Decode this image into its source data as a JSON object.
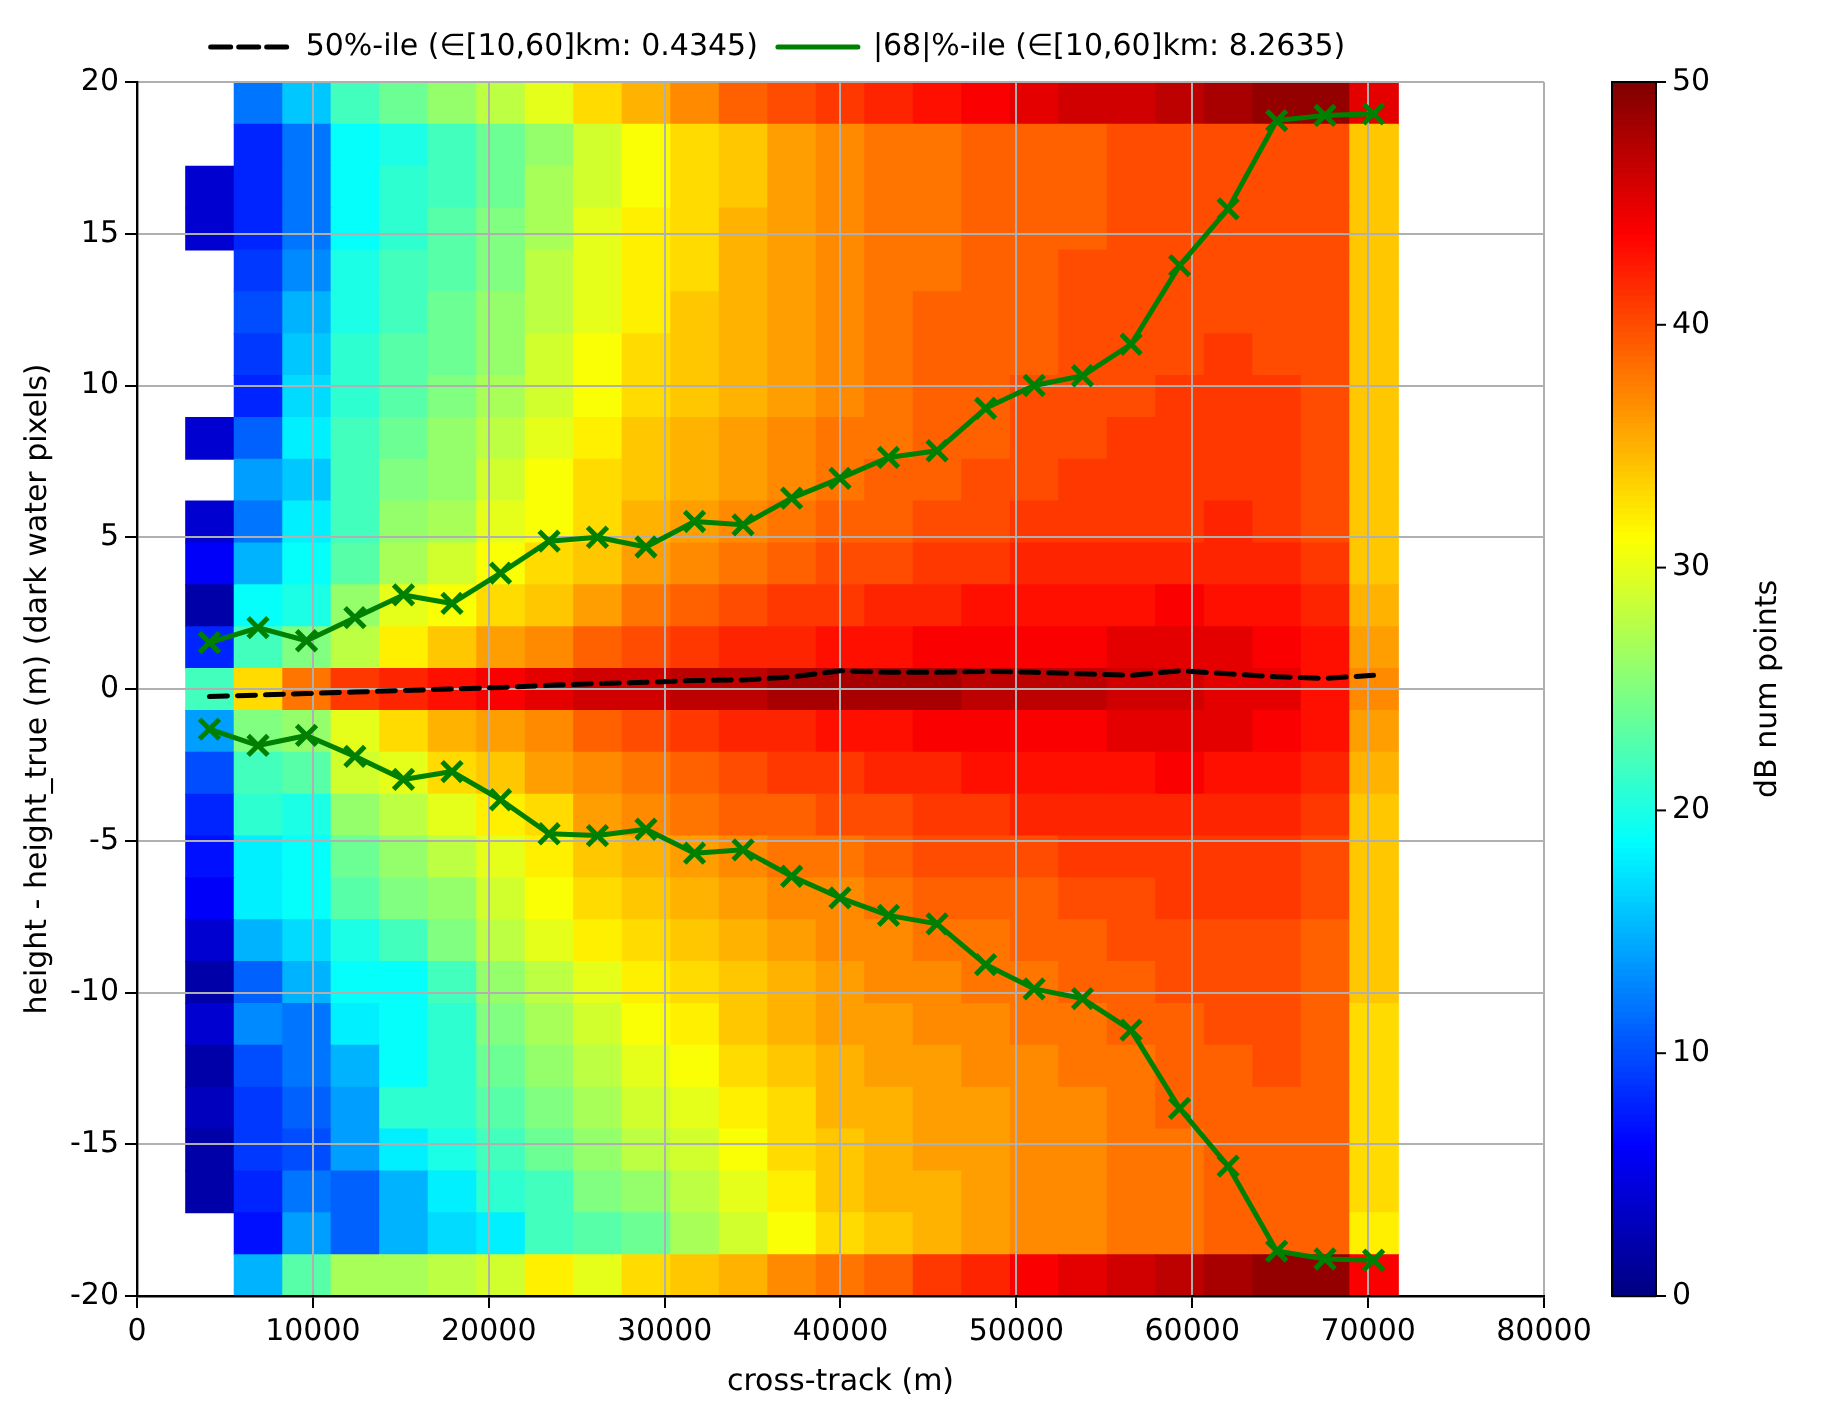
{
  "chart_data": {
    "type": "heatmap",
    "xlabel": "cross-track (m)",
    "ylabel": "height - height_true (m) (dark water pixels)",
    "clabel": "dB num points",
    "x": [
      4120,
      6880,
      9640,
      12390,
      15150,
      17910,
      20670,
      23430,
      26180,
      28940,
      31700,
      34460,
      37220,
      39970,
      42730,
      45490,
      48250,
      51010,
      53760,
      56520,
      59280,
      62040,
      64800,
      67550,
      70310
    ],
    "cells": [
      [
        null,
        12,
        16,
        22,
        24,
        26,
        28,
        30,
        33,
        35,
        37,
        39,
        40,
        41,
        42,
        43,
        44,
        45,
        46,
        46,
        47,
        48,
        49,
        49,
        45
      ],
      [
        null,
        8,
        12,
        19,
        20,
        22,
        24,
        26,
        29,
        31,
        33,
        34,
        36,
        37,
        38,
        38,
        39,
        39,
        39,
        40,
        40,
        40,
        40,
        40,
        34
      ],
      [
        4,
        8,
        12,
        19,
        21,
        22,
        24,
        27,
        29,
        31,
        33,
        34,
        36,
        37,
        38,
        38,
        39,
        39,
        39,
        40,
        40,
        40,
        40,
        40,
        34
      ],
      [
        4,
        8,
        12,
        19,
        21,
        23,
        25,
        27,
        30,
        32,
        33,
        35,
        36,
        37,
        38,
        38,
        39,
        39,
        39,
        40,
        40,
        40,
        40,
        40,
        34
      ],
      [
        null,
        9,
        13,
        20,
        22,
        23,
        25,
        28,
        30,
        32,
        33,
        35,
        36,
        37,
        38,
        38,
        39,
        39,
        40,
        40,
        40,
        40,
        40,
        40,
        34
      ],
      [
        null,
        10,
        15,
        20,
        22,
        24,
        26,
        28,
        30,
        32,
        34,
        35,
        36,
        37,
        38,
        39,
        39,
        39,
        40,
        40,
        40,
        40,
        40,
        40,
        34
      ],
      [
        null,
        9,
        16,
        21,
        23,
        24,
        26,
        29,
        31,
        33,
        34,
        35,
        36,
        37,
        38,
        39,
        39,
        39,
        40,
        40,
        40,
        41,
        40,
        40,
        34
      ],
      [
        null,
        8,
        17,
        21,
        23,
        25,
        27,
        29,
        31,
        33,
        34,
        35,
        36,
        37,
        38,
        39,
        39,
        40,
        40,
        40,
        41,
        41,
        41,
        40,
        34
      ],
      [
        4,
        11,
        18,
        22,
        24,
        26,
        28,
        30,
        32,
        34,
        35,
        36,
        37,
        38,
        38,
        39,
        39,
        40,
        40,
        41,
        41,
        41,
        41,
        40,
        34
      ],
      [
        null,
        14,
        16,
        22,
        25,
        26,
        29,
        31,
        33,
        34,
        35,
        36,
        37,
        38,
        39,
        39,
        40,
        40,
        41,
        41,
        41,
        41,
        41,
        40,
        34
      ],
      [
        4,
        12,
        18,
        22,
        26,
        27,
        30,
        31,
        33,
        35,
        36,
        37,
        38,
        39,
        39,
        40,
        40,
        41,
        41,
        41,
        41,
        42,
        41,
        40,
        34
      ],
      [
        6,
        15,
        19,
        23,
        27,
        29,
        31,
        33,
        34,
        36,
        37,
        38,
        39,
        40,
        40,
        41,
        41,
        42,
        42,
        42,
        42,
        42,
        42,
        41,
        34
      ],
      [
        2,
        19,
        20,
        26,
        30,
        31,
        33,
        34,
        36,
        38,
        39,
        40,
        41,
        41,
        42,
        42,
        43,
        43,
        43,
        43,
        44,
        43,
        43,
        42,
        35
      ],
      [
        8,
        22,
        25,
        28,
        32,
        34,
        36,
        37,
        39,
        40,
        41,
        42,
        42,
        43,
        43,
        44,
        44,
        44,
        44,
        45,
        45,
        45,
        44,
        43,
        36
      ],
      [
        22,
        33,
        38,
        41,
        42,
        43,
        44,
        45,
        46,
        46,
        47,
        47,
        48,
        48,
        48,
        48,
        47,
        47,
        47,
        46,
        46,
        45,
        45,
        43,
        37
      ],
      [
        14,
        25,
        26,
        30,
        33,
        35,
        36,
        37,
        39,
        40,
        41,
        42,
        42,
        43,
        43,
        44,
        44,
        44,
        44,
        45,
        45,
        45,
        44,
        43,
        36
      ],
      [
        10,
        22,
        23,
        29,
        30,
        33,
        34,
        36,
        37,
        38,
        39,
        40,
        41,
        41,
        42,
        42,
        43,
        43,
        43,
        43,
        44,
        43,
        43,
        42,
        35
      ],
      [
        8,
        21,
        20,
        26,
        28,
        30,
        32,
        33,
        36,
        37,
        38,
        39,
        39,
        40,
        40,
        41,
        41,
        42,
        42,
        42,
        42,
        42,
        42,
        41,
        34
      ],
      [
        7,
        18,
        19,
        24,
        26,
        28,
        30,
        32,
        34,
        35,
        36,
        37,
        38,
        38,
        39,
        40,
        40,
        40,
        41,
        41,
        41,
        41,
        41,
        40,
        34
      ],
      [
        6,
        18,
        19,
        23,
        25,
        26,
        29,
        31,
        33,
        34,
        35,
        36,
        37,
        37,
        38,
        39,
        39,
        39,
        40,
        40,
        41,
        41,
        41,
        40,
        34
      ],
      [
        4,
        15,
        17,
        20,
        22,
        25,
        28,
        30,
        32,
        33,
        34,
        35,
        36,
        37,
        37,
        38,
        38,
        39,
        39,
        40,
        40,
        40,
        40,
        39,
        34
      ],
      [
        2,
        11,
        15,
        19,
        19,
        22,
        26,
        28,
        30,
        32,
        33,
        34,
        35,
        36,
        37,
        37,
        38,
        38,
        39,
        39,
        40,
        40,
        40,
        39,
        34
      ],
      [
        4,
        13,
        12,
        18,
        19,
        21,
        25,
        27,
        29,
        31,
        32,
        34,
        35,
        36,
        36,
        37,
        37,
        38,
        38,
        39,
        39,
        40,
        40,
        39,
        33
      ],
      [
        2,
        10,
        12,
        15,
        19,
        21,
        24,
        26,
        28,
        30,
        31,
        33,
        34,
        35,
        36,
        36,
        37,
        37,
        38,
        38,
        39,
        39,
        40,
        39,
        33
      ],
      [
        3,
        9,
        11,
        14,
        21,
        21,
        23,
        25,
        27,
        29,
        30,
        32,
        33,
        35,
        35,
        36,
        36,
        37,
        37,
        38,
        39,
        39,
        39,
        39,
        33
      ],
      [
        2,
        9,
        10,
        14,
        18,
        20,
        22,
        24,
        26,
        28,
        29,
        31,
        33,
        34,
        35,
        36,
        36,
        37,
        37,
        38,
        38,
        39,
        39,
        39,
        33
      ],
      [
        2,
        8,
        12,
        11,
        15,
        18,
        21,
        22,
        25,
        26,
        28,
        30,
        32,
        34,
        35,
        35,
        36,
        37,
        37,
        38,
        38,
        39,
        39,
        39,
        33
      ],
      [
        null,
        7,
        14,
        11,
        15,
        17,
        18,
        22,
        23,
        24,
        27,
        29,
        31,
        33,
        34,
        35,
        36,
        37,
        37,
        38,
        38,
        39,
        39,
        39,
        32
      ],
      [
        null,
        15,
        23,
        27,
        27,
        28,
        29,
        32,
        30,
        33,
        34,
        35,
        37,
        38,
        39,
        41,
        42,
        44,
        45,
        46,
        47,
        48,
        49,
        49,
        44
      ]
    ],
    "clim": [
      0,
      50
    ],
    "cticks": [
      0,
      10,
      20,
      30,
      40,
      50
    ],
    "xlim": [
      0,
      80000
    ],
    "xticks": [
      0,
      10000,
      20000,
      30000,
      40000,
      50000,
      60000,
      70000,
      80000
    ],
    "ylim": [
      -20,
      20
    ],
    "yticks": [
      -20,
      -15,
      -10,
      -5,
      0,
      5,
      10,
      15,
      20
    ],
    "grid": true,
    "legend": "top",
    "series": [
      {
        "name": "50%-ile (∈[10,60]km: 0.4345)",
        "type": "line",
        "color": "#000000",
        "line_style": "dashed",
        "marker": "none",
        "values": [
          -0.25,
          -0.2,
          -0.15,
          -0.1,
          -0.05,
          0.0,
          0.05,
          0.12,
          0.18,
          0.22,
          0.28,
          0.3,
          0.4,
          0.6,
          0.55,
          0.55,
          0.58,
          0.55,
          0.5,
          0.45,
          0.6,
          0.5,
          0.4,
          0.35,
          0.45
        ]
      },
      {
        "name": "|68|%-ile (∈[10,60]km: 8.2635)",
        "type": "line",
        "color": "#008000",
        "line_style": "solid",
        "marker": "cross",
        "values": [
          1.53,
          2.02,
          1.59,
          2.35,
          3.1,
          2.82,
          3.82,
          4.87,
          5.0,
          4.68,
          5.52,
          5.41,
          6.29,
          6.94,
          7.63,
          7.85,
          9.25,
          10.0,
          10.32,
          11.36,
          13.95,
          15.82,
          18.73,
          18.9,
          18.95
        ]
      },
      {
        "type": "line",
        "color": "#008000",
        "line_style": "solid",
        "marker": "cross",
        "values": [
          -1.32,
          -1.86,
          -1.53,
          -2.22,
          -2.98,
          -2.72,
          -3.65,
          -4.77,
          -4.83,
          -4.62,
          -5.41,
          -5.3,
          -6.17,
          -6.88,
          -7.46,
          -7.74,
          -9.08,
          -9.88,
          -10.2,
          -11.24,
          -13.82,
          -15.72,
          -18.52,
          -18.78,
          -18.82
        ]
      }
    ]
  }
}
